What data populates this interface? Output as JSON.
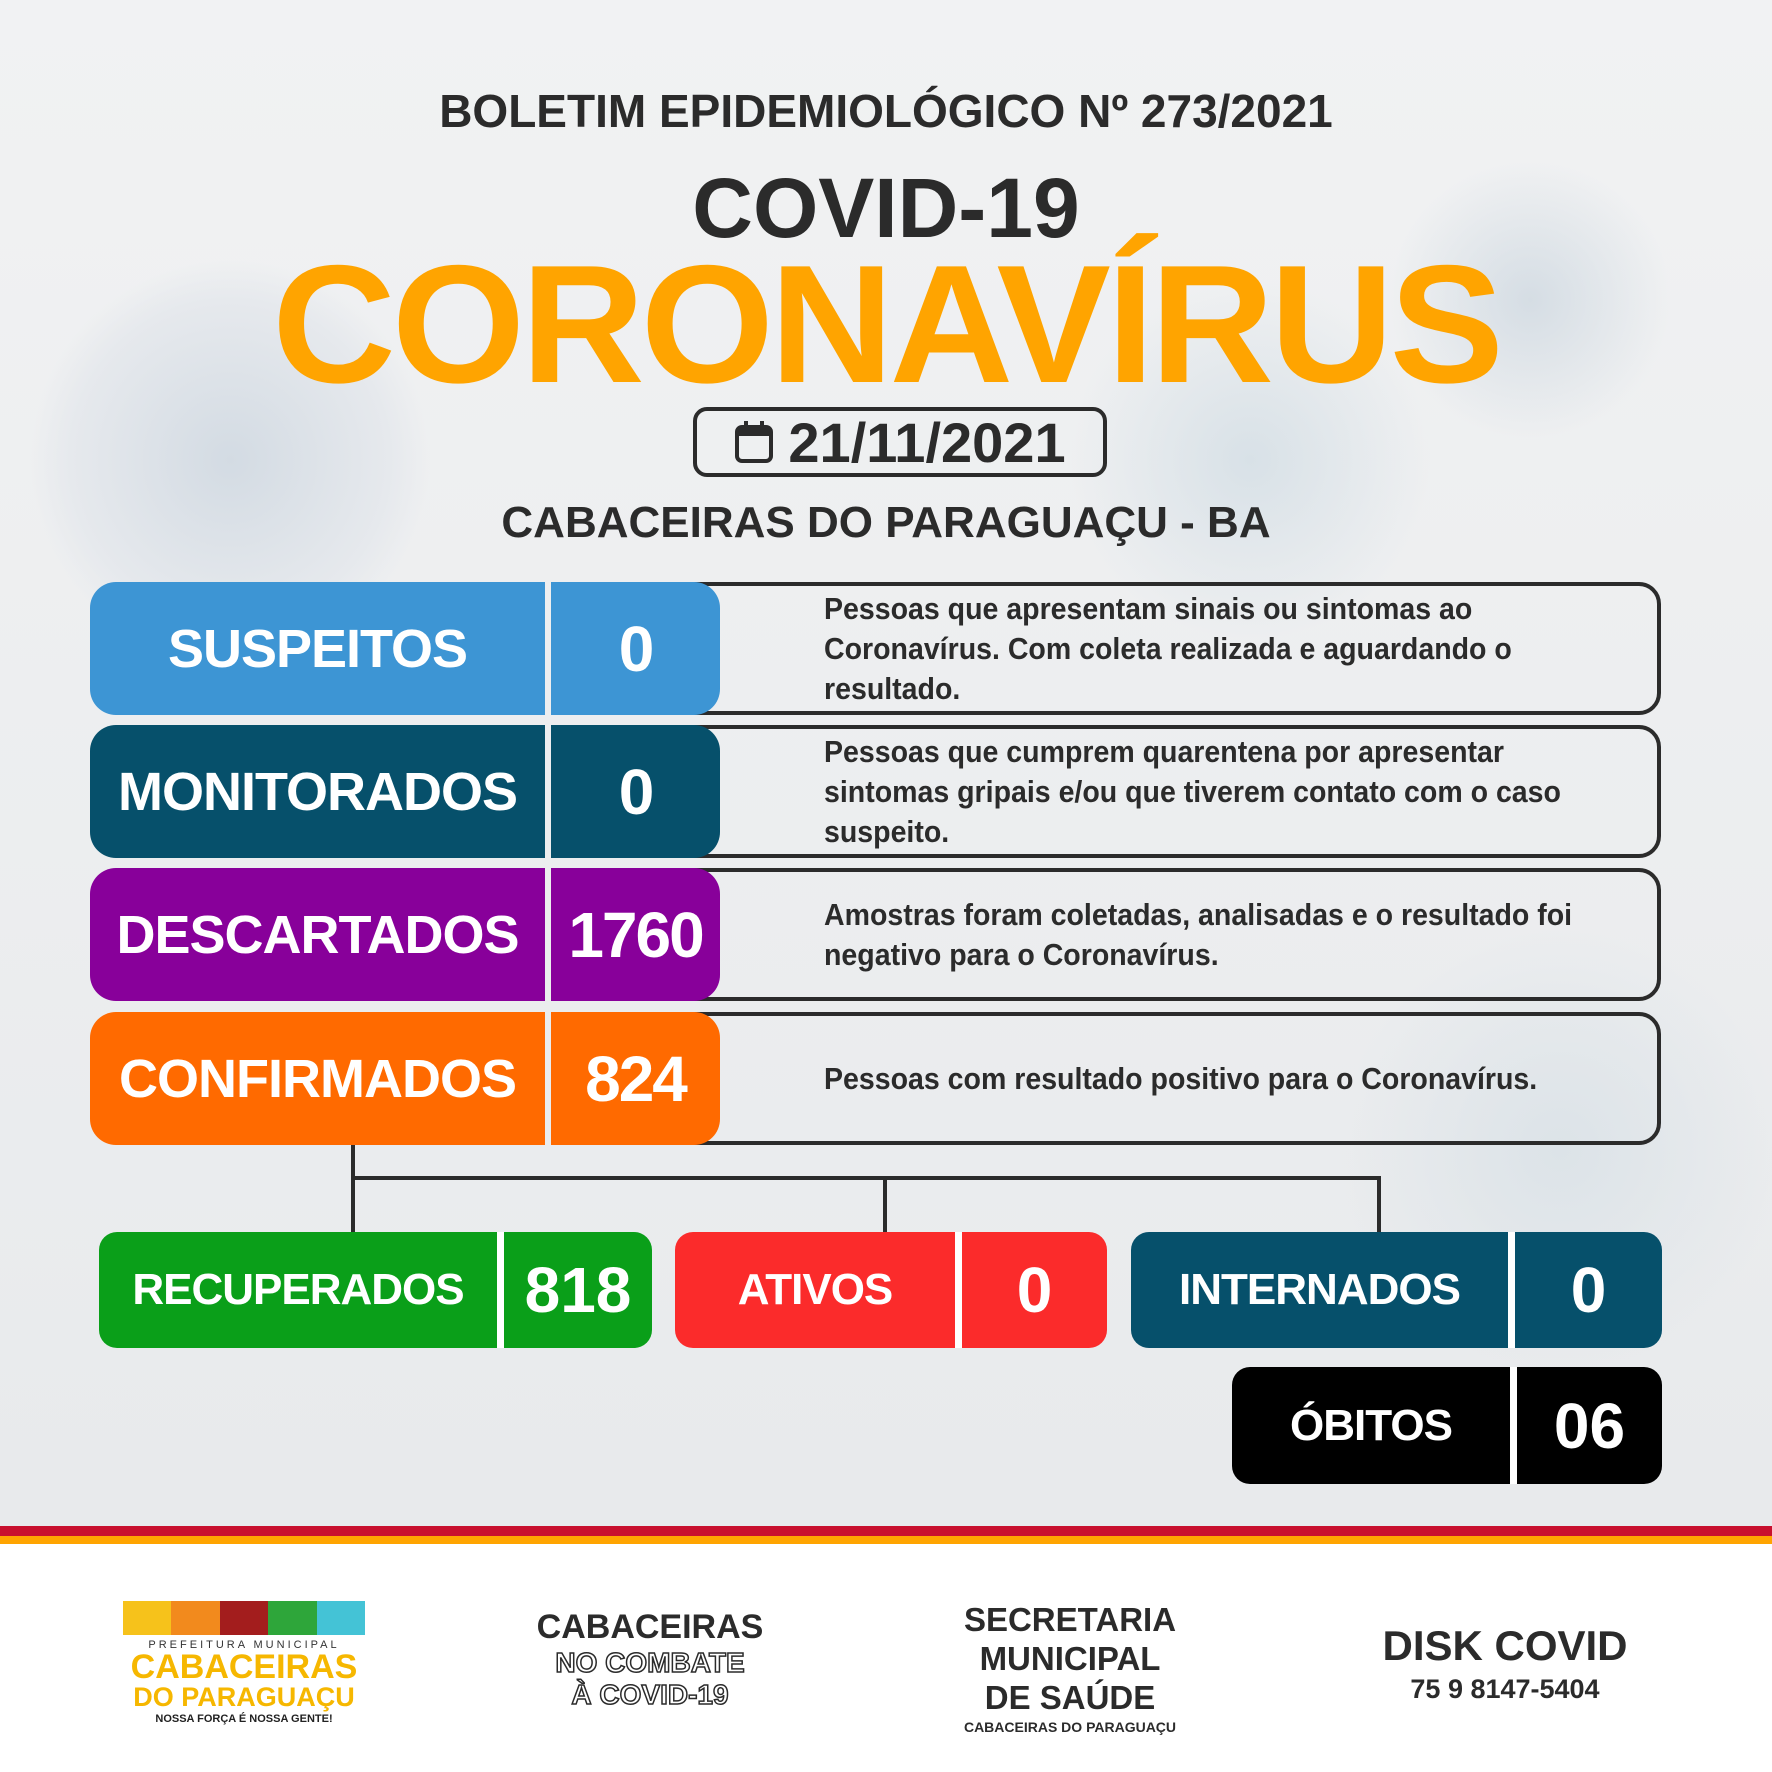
{
  "header": {
    "bulletin": "BOLETIM EPIDEMIOLÓGICO Nº 273/2021",
    "subtitle": "COVID-19",
    "title": "CORONAVÍRUS",
    "date": "21/11/2021",
    "location": "CABACEIRAS DO PARAGUAÇU - BA"
  },
  "rows": [
    {
      "label": "SUSPEITOS",
      "value": "0",
      "color": "#3d95d4",
      "description": "Pessoas que apresentam sinais ou sintomas ao Coronavírus. Com coleta realizada e aguardando o resultado."
    },
    {
      "label": "MONITORADOS",
      "value": "0",
      "color": "#06506b",
      "description": "Pessoas que cumprem quarentena por apresentar sintomas gripais e/ou que tiverem contato com o caso suspeito."
    },
    {
      "label": "DESCARTADOS",
      "value": "1760",
      "color": "#88009a",
      "description": "Amostras foram coletadas, analisadas e o resultado foi negativo para o Coronavírus."
    },
    {
      "label": "CONFIRMADOS",
      "value": "824",
      "color": "#ff6a00",
      "description": "Pessoas com resultado positivo para o Coronavírus."
    }
  ],
  "breakdown": [
    {
      "label": "RECUPERADOS",
      "value": "818",
      "color": "#0a9f19"
    },
    {
      "label": "ATIVOS",
      "value": "0",
      "color": "#fb2b2b"
    },
    {
      "label": "INTERNADOS",
      "value": "0",
      "color": "#06506b"
    },
    {
      "label": "ÓBITOS",
      "value": "06",
      "color": "#000000"
    }
  ],
  "footer": {
    "logo1": {
      "top": "PREFEITURA MUNICIPAL",
      "name1": "CABACEIRAS",
      "name2": "DO PARAGUAÇU",
      "slogan": "NOSSA FORÇA É NOSSA GENTE!"
    },
    "logo2": {
      "line1": "CABACEIRAS",
      "line2": "NO COMBATE",
      "line3": "À COVID-19"
    },
    "logo3": {
      "line1": "SECRETARIA",
      "line2": "MUNICIPAL",
      "line3": "DE SAÚDE",
      "line4": "CABACEIRAS DO PARAGUAÇU"
    },
    "logo4": {
      "title": "DISK COVID",
      "phone": "75 9 8147-5404"
    }
  }
}
